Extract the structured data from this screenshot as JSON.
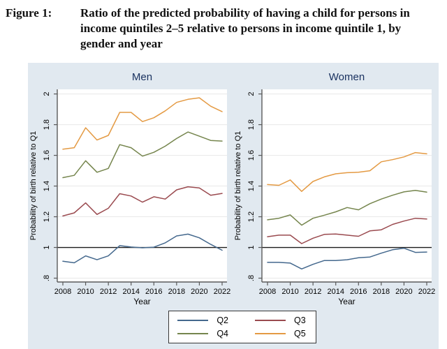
{
  "caption": {
    "label": "Figure 1:",
    "lines": [
      "Ratio of the predicted probability of having a child for persons in",
      "income quintiles 2–5 relative to persons in income quintile 1, by",
      "gender and year"
    ]
  },
  "colors": {
    "figure_bg": "#e1e9f0",
    "plot_bg": "#ffffff",
    "panel_title": "#1a3260",
    "grid": "#e8e8e8",
    "axis": "#5a5a5a",
    "tick_text": "#000000",
    "ref_line": "#1c1c1c",
    "legend_border": "#383838"
  },
  "chart_data": [
    {
      "type": "line",
      "title": "Men",
      "xlabel": "Year",
      "ylabel": "Probability of birth relative to Q1",
      "x": [
        2008,
        2009,
        2010,
        2011,
        2012,
        2013,
        2014,
        2015,
        2016,
        2017,
        2018,
        2019,
        2020,
        2021,
        2022
      ],
      "xticks": [
        2008,
        2010,
        2012,
        2014,
        2016,
        2018,
        2020,
        2022
      ],
      "yticks": [
        {
          "value": 2,
          "label": "2"
        },
        {
          "value": 1.8,
          "label": "1.8"
        },
        {
          "value": 1.6,
          "label": "1.6"
        },
        {
          "value": 1.4,
          "label": "1.4"
        },
        {
          "value": 1.2,
          "label": "1.2"
        },
        {
          "value": 1,
          "label": "1"
        },
        {
          "value": 0.8,
          "label": ".8"
        }
      ],
      "ylim": [
        0.775,
        2.03
      ],
      "grid": true,
      "ref_line_y": 1,
      "series": [
        {
          "name": "Q2",
          "color": "#44688d",
          "values": [
            0.91,
            0.9,
            0.945,
            0.92,
            0.945,
            1.012,
            1.003,
            0.998,
            1.002,
            1.03,
            1.075,
            1.087,
            1.063,
            1.02,
            0.982
          ]
        },
        {
          "name": "Q3",
          "color": "#9a4a4f",
          "values": [
            1.205,
            1.225,
            1.29,
            1.215,
            1.255,
            1.35,
            1.335,
            1.295,
            1.33,
            1.315,
            1.375,
            1.395,
            1.388,
            1.34,
            1.352
          ]
        },
        {
          "name": "Q4",
          "color": "#75854d",
          "values": [
            1.455,
            1.47,
            1.565,
            1.49,
            1.515,
            1.67,
            1.65,
            1.595,
            1.62,
            1.66,
            1.71,
            1.752,
            1.725,
            1.697,
            1.693
          ]
        },
        {
          "name": "Q5",
          "color": "#e49a43",
          "values": [
            1.64,
            1.65,
            1.78,
            1.7,
            1.73,
            1.88,
            1.88,
            1.82,
            1.845,
            1.89,
            1.945,
            1.965,
            1.975,
            1.92,
            1.885
          ]
        }
      ]
    },
    {
      "type": "line",
      "title": "Women",
      "xlabel": "Year",
      "ylabel": "Probability of birth relative to Q1",
      "x": [
        2008,
        2009,
        2010,
        2011,
        2012,
        2013,
        2014,
        2015,
        2016,
        2017,
        2018,
        2019,
        2020,
        2021,
        2022
      ],
      "xticks": [
        2008,
        2010,
        2012,
        2014,
        2016,
        2018,
        2020,
        2022
      ],
      "yticks": [
        {
          "value": 2,
          "label": "2"
        },
        {
          "value": 1.8,
          "label": "1.8"
        },
        {
          "value": 1.6,
          "label": "1.6"
        },
        {
          "value": 1.4,
          "label": "1.4"
        },
        {
          "value": 1.2,
          "label": "1.2"
        },
        {
          "value": 1,
          "label": "1"
        },
        {
          "value": 0.8,
          "label": ".8"
        }
      ],
      "ylim": [
        0.775,
        2.03
      ],
      "grid": true,
      "ref_line_y": 1,
      "series": [
        {
          "name": "Q2",
          "color": "#44688d",
          "values": [
            0.903,
            0.903,
            0.898,
            0.86,
            0.89,
            0.915,
            0.915,
            0.92,
            0.933,
            0.938,
            0.963,
            0.985,
            0.995,
            0.968,
            0.97
          ]
        },
        {
          "name": "Q3",
          "color": "#9a4a4f",
          "values": [
            1.07,
            1.08,
            1.08,
            1.025,
            1.06,
            1.085,
            1.088,
            1.08,
            1.073,
            1.108,
            1.115,
            1.15,
            1.172,
            1.19,
            1.185
          ]
        },
        {
          "name": "Q4",
          "color": "#75854d",
          "values": [
            1.18,
            1.19,
            1.212,
            1.145,
            1.19,
            1.21,
            1.232,
            1.26,
            1.245,
            1.285,
            1.315,
            1.34,
            1.362,
            1.372,
            1.36
          ]
        },
        {
          "name": "Q5",
          "color": "#e49a43",
          "values": [
            1.41,
            1.405,
            1.44,
            1.365,
            1.43,
            1.46,
            1.48,
            1.487,
            1.49,
            1.5,
            1.558,
            1.572,
            1.59,
            1.618,
            1.61
          ]
        }
      ]
    }
  ],
  "legend": {
    "items": [
      {
        "label": "Q2",
        "color": "#44688d"
      },
      {
        "label": "Q3",
        "color": "#9a4a4f"
      },
      {
        "label": "Q4",
        "color": "#75854d"
      },
      {
        "label": "Q5",
        "color": "#e49a43"
      }
    ]
  }
}
